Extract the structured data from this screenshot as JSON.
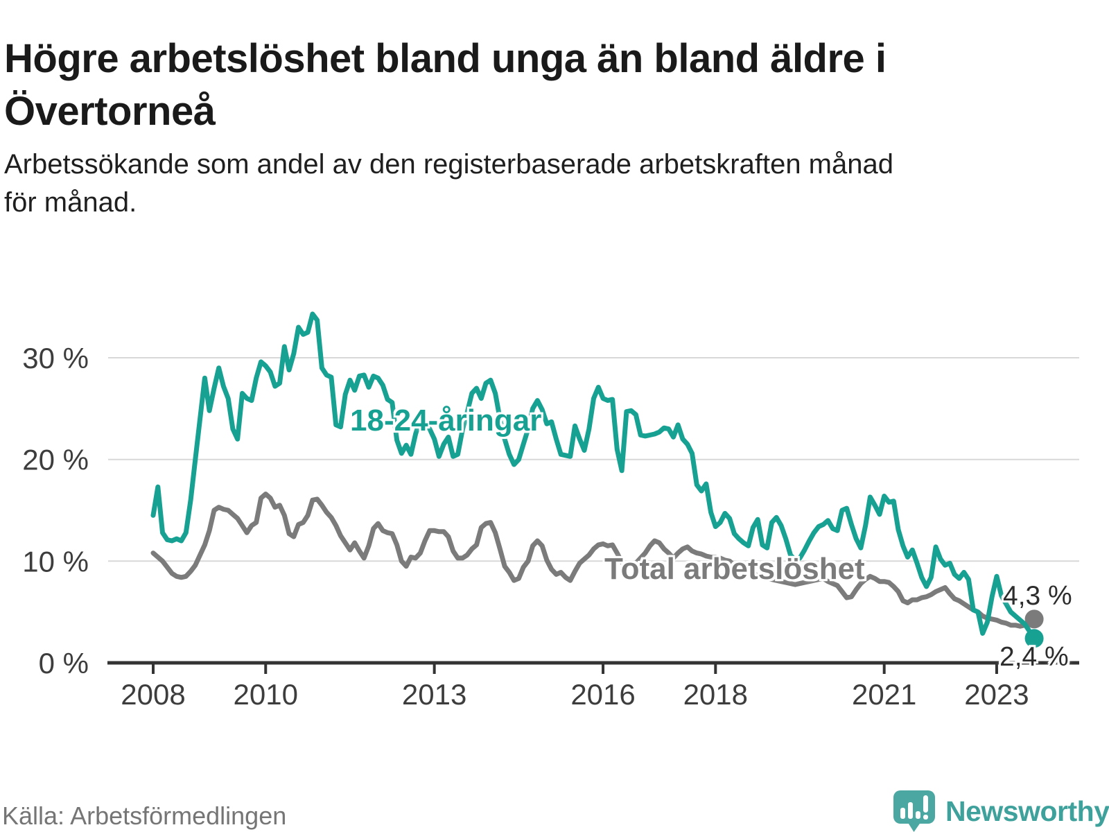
{
  "header": {
    "title_lines": [
      "Högre arbetslöshet bland unga än bland äldre i",
      "Övertorneå"
    ],
    "subtitle_lines": [
      "Arbetssökande som andel av den registerbaserade arbetskraften månad",
      "för månad."
    ]
  },
  "chart_data": {
    "type": "line",
    "x_unit": "month",
    "x_start": "2008-01",
    "x_end": "2023-09",
    "x_tick_years": [
      2008,
      2010,
      2013,
      2016,
      2018,
      2021,
      2023
    ],
    "x_tick_labels": [
      "2008",
      "2010",
      "2013",
      "2016",
      "2018",
      "2021",
      "2023"
    ],
    "y_ticks": [
      0,
      10,
      20,
      30
    ],
    "y_tick_labels": [
      "0 %",
      "10 %",
      "20 %",
      "30 %"
    ],
    "ylim": [
      0,
      36
    ],
    "grid": "horizontal",
    "grid_color": "#d8d8d8",
    "axis_color": "#333333",
    "tick_label_color": "#3d3d3d",
    "end_label_color": "#2d2d2d",
    "series": [
      {
        "name": "18-24-åringar",
        "color": "#17a193",
        "end_label": "2,4 %",
        "end_value": 2.4,
        "values": [
          14.5,
          17.3,
          12.8,
          12.1,
          12.0,
          12.2,
          12.0,
          12.8,
          16.0,
          20.0,
          24.0,
          28.0,
          24.8,
          27.0,
          29.0,
          27.2,
          26.0,
          23.0,
          22.0,
          26.5,
          26.0,
          25.8,
          28.0,
          29.6,
          29.2,
          28.6,
          27.2,
          27.5,
          31.1,
          28.8,
          30.4,
          33.0,
          32.3,
          32.5,
          34.3,
          33.7,
          29.0,
          28.3,
          28.1,
          23.4,
          23.2,
          26.4,
          27.8,
          26.8,
          28.2,
          28.3,
          27.1,
          28.2,
          28.0,
          27.3,
          25.9,
          25.6,
          21.9,
          20.6,
          21.4,
          20.5,
          22.5,
          24.0,
          23.5,
          23.0,
          22.0,
          20.3,
          21.5,
          22.2,
          20.3,
          20.5,
          22.9,
          24.6,
          26.5,
          27.0,
          26.0,
          27.5,
          27.8,
          26.5,
          24.0,
          22.0,
          20.5,
          19.5,
          20.0,
          21.5,
          23.0,
          25.0,
          25.8,
          24.9,
          23.5,
          23.7,
          22.0,
          20.5,
          20.4,
          20.3,
          23.3,
          22.0,
          20.9,
          23.0,
          26.0,
          27.1,
          26.0,
          25.8,
          25.9,
          21.0,
          18.9,
          24.7,
          24.8,
          24.4,
          22.4,
          22.3,
          22.4,
          22.5,
          22.7,
          23.1,
          23.0,
          22.2,
          23.4,
          22.0,
          21.5,
          20.6,
          17.5,
          16.9,
          17.6,
          14.8,
          13.4,
          13.8,
          14.7,
          14.2,
          12.7,
          12.2,
          11.8,
          11.5,
          13.3,
          14.1,
          11.6,
          11.3,
          13.8,
          14.3,
          13.5,
          12.2,
          10.6,
          10.1,
          10.3,
          11.1,
          12.0,
          12.8,
          13.4,
          13.6,
          14.0,
          13.2,
          13.0,
          15.0,
          15.2,
          13.6,
          12.2,
          11.3,
          13.5,
          16.3,
          15.5,
          14.6,
          16.4,
          15.8,
          15.9,
          13.1,
          11.5,
          10.4,
          11.1,
          9.8,
          8.4,
          7.5,
          8.4,
          11.4,
          10.2,
          9.6,
          9.8,
          8.7,
          8.3,
          8.9,
          8.2,
          5.2,
          5.0,
          2.9,
          4.0,
          6.5,
          8.5,
          6.6,
          5.8,
          5.0,
          4.6,
          4.2,
          3.8,
          3.1,
          2.4
        ]
      },
      {
        "name": "Total arbetslöshet",
        "color": "#7b7b7b",
        "end_label": "4,3 %",
        "end_value": 4.3,
        "values": [
          10.8,
          10.4,
          10.0,
          9.4,
          8.8,
          8.5,
          8.4,
          8.5,
          9.0,
          9.6,
          10.6,
          11.6,
          13.0,
          15.0,
          15.3,
          15.1,
          15.0,
          14.6,
          14.2,
          13.5,
          12.8,
          13.5,
          13.8,
          16.2,
          16.6,
          16.2,
          15.3,
          15.5,
          14.5,
          12.7,
          12.4,
          13.6,
          13.8,
          14.5,
          16.0,
          16.1,
          15.5,
          14.8,
          14.3,
          13.5,
          12.5,
          11.8,
          11.1,
          11.8,
          11.0,
          10.3,
          11.5,
          13.2,
          13.7,
          13.0,
          12.8,
          12.7,
          11.6,
          10.0,
          9.5,
          10.4,
          10.3,
          10.8,
          12.0,
          13.0,
          13.0,
          12.9,
          12.9,
          12.4,
          11.0,
          10.3,
          10.3,
          10.6,
          11.2,
          11.6,
          13.3,
          13.7,
          13.8,
          12.8,
          11.2,
          9.5,
          8.9,
          8.1,
          8.3,
          9.4,
          10.0,
          11.5,
          12.0,
          11.5,
          10.1,
          9.2,
          8.7,
          8.9,
          8.4,
          8.1,
          9.0,
          9.8,
          10.2,
          10.6,
          11.2,
          11.6,
          11.7,
          11.5,
          11.6,
          10.8,
          9.9,
          9.5,
          9.7,
          9.8,
          10.3,
          10.8,
          11.5,
          12.0,
          11.8,
          11.2,
          10.8,
          10.3,
          10.8,
          11.2,
          11.4,
          11.0,
          10.8,
          10.7,
          10.5,
          10.4,
          10.4,
          10.3,
          10.1,
          10.0,
          9.6,
          9.4,
          9.2,
          9.0,
          8.8,
          8.6,
          8.4,
          8.3,
          8.2,
          8.1,
          8.0,
          7.9,
          7.8,
          7.7,
          7.8,
          7.9,
          8.0,
          8.1,
          8.2,
          8.3,
          8.0,
          7.8,
          7.6,
          7.0,
          6.4,
          6.5,
          7.2,
          7.8,
          8.2,
          8.5,
          8.3,
          8.0,
          8.0,
          7.9,
          7.5,
          7.0,
          6.1,
          5.9,
          6.2,
          6.2,
          6.4,
          6.5,
          6.7,
          7.0,
          7.2,
          7.4,
          6.8,
          6.3,
          6.1,
          5.8,
          5.5,
          5.2,
          5.0,
          4.6,
          4.4,
          4.3,
          4.2,
          4.0,
          3.9,
          3.7,
          3.7,
          3.6,
          3.7,
          3.9,
          4.3
        ]
      }
    ]
  },
  "footer": {
    "source": "Källa: Arbetsförmedlingen",
    "brand": "Newsworthy",
    "brand_color": "#3fa19b",
    "brand_icon_color": "#4ba7a1"
  }
}
